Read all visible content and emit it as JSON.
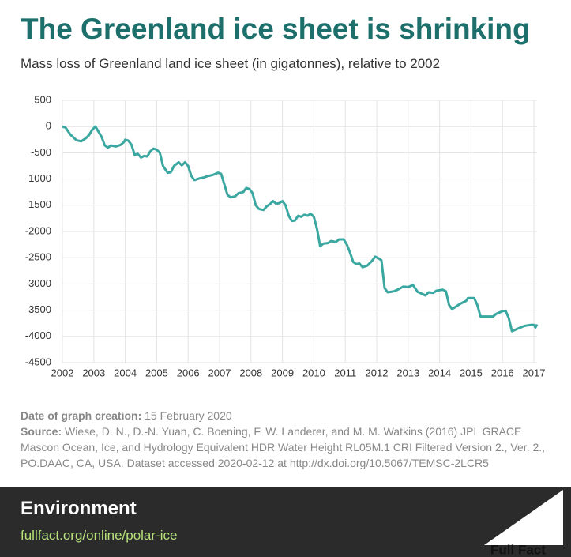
{
  "title": "The Greenland ice sheet is shrinking",
  "subtitle": "Mass loss of Greenland land ice sheet (in gigatonnes), relative to 2002",
  "chart_data": {
    "type": "line",
    "color": "#3aa8a0",
    "grid": true,
    "xlim": [
      2002,
      2017.1
    ],
    "ylim": [
      -4500,
      500
    ],
    "xticks": [
      2002,
      2003,
      2004,
      2005,
      2006,
      2007,
      2008,
      2009,
      2010,
      2011,
      2012,
      2013,
      2014,
      2015,
      2016,
      2017
    ],
    "yticks": [
      500,
      0,
      -500,
      -1000,
      -1500,
      -2000,
      -2500,
      -3000,
      -3500,
      -4000,
      -4500
    ],
    "x": [
      2002.0,
      2002.1,
      2002.25,
      2002.45,
      2002.6,
      2002.75,
      2002.85,
      2002.95,
      2003.05,
      2003.15,
      2003.25,
      2003.35,
      2003.45,
      2003.55,
      2003.7,
      2003.85,
      2003.95,
      2004.0,
      2004.1,
      2004.2,
      2004.3,
      2004.4,
      2004.5,
      2004.6,
      2004.7,
      2004.8,
      2004.9,
      2005.0,
      2005.1,
      2005.2,
      2005.35,
      2005.45,
      2005.55,
      2005.7,
      2005.8,
      2005.9,
      2006.0,
      2006.1,
      2006.2,
      2006.35,
      2006.5,
      2006.65,
      2006.8,
      2006.95,
      2007.05,
      2007.15,
      2007.25,
      2007.35,
      2007.5,
      2007.6,
      2007.75,
      2007.85,
      2007.95,
      2008.05,
      2008.15,
      2008.25,
      2008.4,
      2008.5,
      2008.6,
      2008.7,
      2008.8,
      2008.9,
      2009.0,
      2009.1,
      2009.2,
      2009.3,
      2009.4,
      2009.5,
      2009.6,
      2009.7,
      2009.8,
      2009.9,
      2010.0,
      2010.1,
      2010.2,
      2010.3,
      2010.45,
      2010.55,
      2010.7,
      2010.8,
      2010.95,
      2011.05,
      2011.15,
      2011.25,
      2011.35,
      2011.45,
      2011.55,
      2011.7,
      2011.85,
      2011.95,
      2012.05,
      2012.15,
      2012.25,
      2012.35,
      2012.55,
      2012.7,
      2012.85,
      2013.0,
      2013.15,
      2013.3,
      2013.45,
      2013.55,
      2013.65,
      2013.8,
      2013.9,
      2014.1,
      2014.2,
      2014.3,
      2014.4,
      2014.5,
      2014.65,
      2014.85,
      2014.9,
      2015.1,
      2015.2,
      2015.3,
      2015.5,
      2015.7,
      2015.8,
      2016.0,
      2016.1,
      2016.2,
      2016.3,
      2016.5,
      2016.7,
      2016.9,
      2017.0,
      2017.05,
      2017.1
    ],
    "values": [
      0,
      -20,
      -150,
      -260,
      -280,
      -220,
      -160,
      -60,
      0,
      -100,
      -200,
      -360,
      -400,
      -360,
      -380,
      -350,
      -300,
      -250,
      -270,
      -350,
      -540,
      -520,
      -590,
      -560,
      -570,
      -470,
      -420,
      -440,
      -500,
      -750,
      -880,
      -870,
      -750,
      -680,
      -740,
      -680,
      -750,
      -940,
      -1020,
      -990,
      -970,
      -940,
      -920,
      -880,
      -900,
      -1100,
      -1300,
      -1350,
      -1330,
      -1270,
      -1250,
      -1170,
      -1190,
      -1270,
      -1500,
      -1570,
      -1590,
      -1520,
      -1480,
      -1420,
      -1470,
      -1460,
      -1420,
      -1500,
      -1700,
      -1800,
      -1790,
      -1700,
      -1720,
      -1680,
      -1700,
      -1660,
      -1720,
      -1950,
      -2280,
      -2230,
      -2220,
      -2180,
      -2200,
      -2150,
      -2150,
      -2250,
      -2400,
      -2580,
      -2620,
      -2610,
      -2680,
      -2650,
      -2560,
      -2480,
      -2510,
      -2550,
      -3080,
      -3160,
      -3140,
      -3100,
      -3050,
      -3060,
      -3020,
      -3150,
      -3190,
      -3220,
      -3160,
      -3170,
      -3130,
      -3110,
      -3140,
      -3400,
      -3480,
      -3440,
      -3380,
      -3320,
      -3270,
      -3270,
      -3400,
      -3620,
      -3620,
      -3620,
      -3570,
      -3520,
      -3510,
      -3650,
      -3900,
      -3850,
      -3800,
      -3780,
      -3780,
      -3830,
      -3770
    ]
  },
  "footnote": {
    "date_label": "Date of graph creation:",
    "date": "15 February 2020",
    "source_label": "Source:",
    "source": "Wiese, D. N., D.-N. Yuan, C. Boening, F. W. Landerer, and M. M. Watkins (2016) JPL GRACE Mascon Ocean, Ice, and Hydrology Equivalent HDR Water Height RL05M.1 CRI Filtered Version 2., Ver. 2., PO.DAAC, CA, USA. Dataset accessed 2020-02-12 at http://dx.doi.org/10.5067/TEMSC-2LCR5"
  },
  "footer": {
    "section": "Environment",
    "link": "fullfact.org/online/polar-ice",
    "brand": "Full Fact"
  }
}
